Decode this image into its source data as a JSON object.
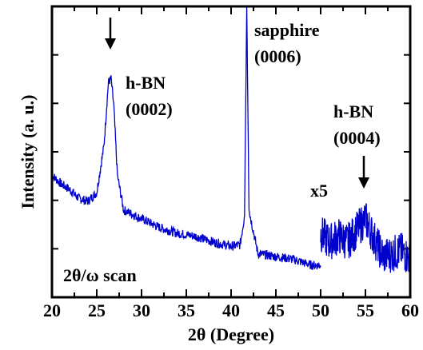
{
  "chart_data": {
    "type": "line",
    "xlabel": "2θ (Degree)",
    "ylabel": "Intensity (a. u.)",
    "xlim": [
      20,
      60
    ],
    "ylim": [
      0,
      100
    ],
    "x_ticks": [
      "20",
      "25",
      "30",
      "35",
      "40",
      "45",
      "50",
      "55",
      "60"
    ],
    "y_scale": "arbitrary units, no tick labels",
    "grid": false,
    "line_color": "#0000cc",
    "scan_label": "2θ/ω scan",
    "series": [
      {
        "values": [
          [
            20,
            42
          ],
          [
            21,
            39
          ],
          [
            22,
            37
          ],
          [
            23,
            34
          ],
          [
            24,
            33
          ],
          [
            25,
            36
          ],
          [
            25.8,
            52
          ],
          [
            26.3,
            74
          ],
          [
            26.6,
            75
          ],
          [
            26.9,
            66
          ],
          [
            27.3,
            42
          ],
          [
            28,
            30
          ],
          [
            30,
            27
          ],
          [
            32,
            24
          ],
          [
            34,
            22
          ],
          [
            36,
            21
          ],
          [
            38,
            19
          ],
          [
            40,
            17.5
          ],
          [
            41,
            18
          ],
          [
            41.5,
            28
          ],
          [
            41.75,
            100
          ],
          [
            42,
            30
          ],
          [
            43,
            15
          ],
          [
            45,
            14
          ],
          [
            47,
            13
          ],
          [
            49,
            11
          ],
          [
            50,
            11
          ]
        ]
      },
      {
        "values": [
          [
            50,
            22
          ],
          [
            51,
            19
          ],
          [
            52,
            21
          ],
          [
            53,
            19
          ],
          [
            54,
            23
          ],
          [
            55,
            27
          ],
          [
            56,
            20
          ],
          [
            57,
            14
          ],
          [
            58,
            15
          ],
          [
            59,
            16
          ],
          [
            60,
            13
          ]
        ]
      }
    ],
    "annotations": [
      {
        "text": [
          "h-BN",
          "(0002)"
        ],
        "x": 26.6,
        "arrow": true
      },
      {
        "text": [
          "sapphire",
          "(0006)"
        ],
        "x": 41.75,
        "arrow": false
      },
      {
        "text": [
          "h-BN",
          "(0004)"
        ],
        "x": 55,
        "arrow": true
      },
      {
        "text": [
          "x5"
        ],
        "x": 51,
        "arrow": false
      }
    ]
  }
}
